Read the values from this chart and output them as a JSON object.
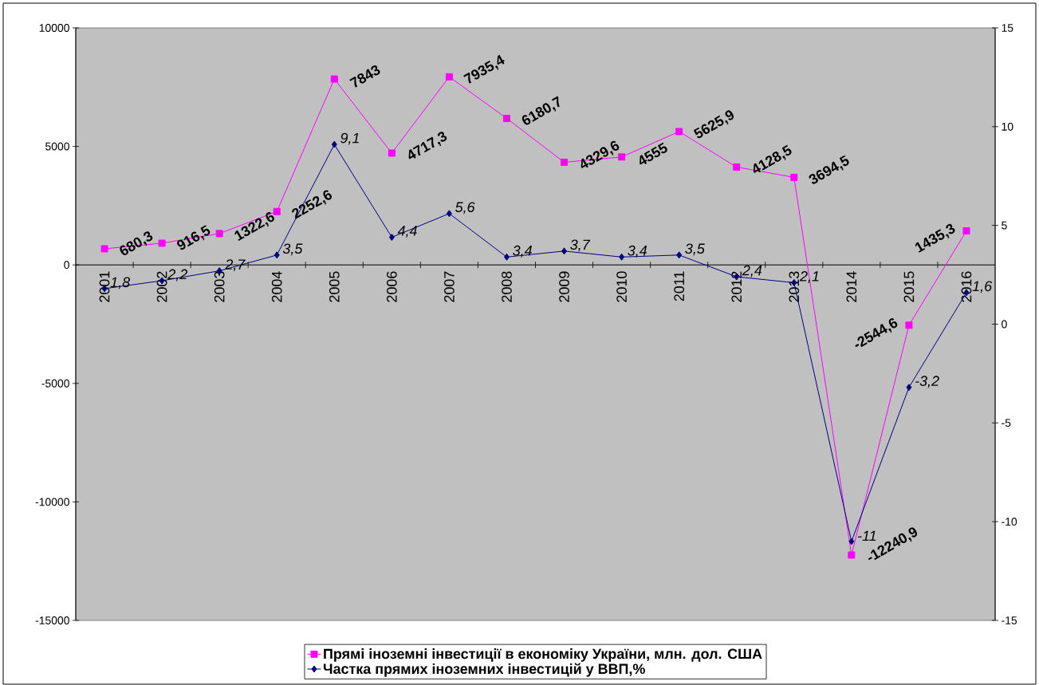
{
  "chart_data": {
    "type": "line",
    "categories": [
      "2001",
      "2002",
      "2003",
      "2004",
      "2005",
      "2006",
      "2007",
      "2008",
      "2009",
      "2010",
      "2011",
      "2012",
      "2013",
      "2014",
      "2015",
      "2016"
    ],
    "series": [
      {
        "name": "Прямі іноземні інвестиції в економіку України, млн. дол. США",
        "color": "#ff00ff",
        "marker": "square",
        "values": [
          680.3,
          916.5,
          1322.6,
          2252.6,
          7843,
          4717.3,
          7935.4,
          6180.7,
          4329.6,
          4555,
          5625.9,
          4128.5,
          3694.5,
          -12240.9,
          -2544.6,
          1435.3
        ],
        "value_labels": [
          "680,3",
          "916,5",
          "1322,6",
          "2252,6",
          "7843",
          "4717,3",
          "7935,4",
          "6180,7",
          "4329,6",
          "4555",
          "5625,9",
          "4128,5",
          "3694,5",
          "-12240,9",
          "-2544,6",
          "1435,3"
        ]
      },
      {
        "name": "Частка прямих іноземних інвестицій у ВВП,%",
        "color": "#000080",
        "marker": "diamond",
        "axis": "y2",
        "values": [
          1.8,
          2.2,
          2.7,
          3.5,
          9.1,
          4.4,
          5.6,
          3.4,
          3.7,
          3.4,
          3.5,
          2.4,
          2.1,
          -11,
          -3.2,
          1.6
        ],
        "value_labels": [
          "1,8",
          "2,2",
          "2,7",
          "3,5",
          "9,1",
          "4,4",
          "5,6",
          "3,4",
          "3,7",
          "3,4",
          "3,5",
          "2,4",
          "2,1",
          "-11",
          "-3,2",
          "1,6"
        ]
      }
    ],
    "ylim": [
      -15000,
      10000
    ],
    "yticks": [
      -15000,
      -10000,
      -5000,
      0,
      5000,
      10000
    ],
    "y2lim": [
      -15,
      15
    ],
    "y2ticks": [
      -15,
      -10,
      -5,
      0,
      5,
      10,
      15
    ],
    "legend": "bottom",
    "grid": false
  }
}
